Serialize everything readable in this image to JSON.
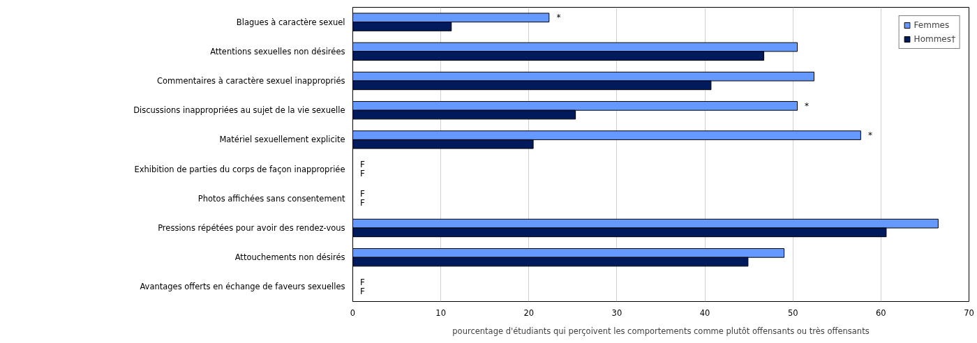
{
  "chart_data": {
    "type": "bar",
    "orientation": "horizontal",
    "xlabel": "pourcentage d'étudiants qui perçoivent les comportements comme plutôt offensants ou très offensants",
    "categories": [
      "Blagues à caractère sexuel",
      "Attentions sexuelles non désirées",
      "Commentaires à caractère sexuel inappropriés",
      "Discussions inappropriées au sujet de la vie sexuelle",
      "Matériel sexuellement explicite",
      "Exhibition de parties du corps de façon inappropriée",
      "Photos affichées sans consentement",
      "Pressions répétées pour avoir des rendez-vous",
      "Attouchements non désirés",
      "Avantages offerts en échange de faveurs sexuelles"
    ],
    "series": [
      {
        "name": "Femmes",
        "color": "#6699ff",
        "values": [
          22.3,
          50.5,
          52.4,
          50.5,
          57.7,
          null,
          null,
          66.5,
          49.0,
          null
        ],
        "value_labels": [
          "*",
          null,
          null,
          "*",
          "*",
          "F",
          "F",
          null,
          null,
          "F"
        ]
      },
      {
        "name": "Hommes†",
        "color": "#001a5c",
        "values": [
          11.2,
          46.7,
          40.7,
          25.3,
          20.5,
          null,
          null,
          60.6,
          44.9,
          null
        ],
        "value_labels": [
          null,
          null,
          null,
          null,
          null,
          "F",
          "F",
          null,
          null,
          "F"
        ]
      }
    ],
    "xlim": [
      0,
      70
    ],
    "xticks": [
      0,
      10,
      20,
      30,
      40,
      50,
      60,
      70
    ],
    "grid": "x",
    "legend": "top right"
  }
}
